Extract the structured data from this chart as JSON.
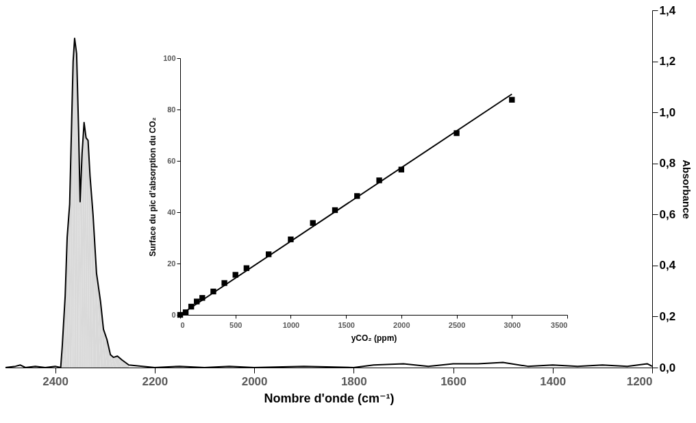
{
  "chart_data": [
    {
      "type": "line",
      "xlabel": "Nombre d'onde (cm⁻¹)",
      "y2label": "Absorbance",
      "xlim": [
        2500,
        1200
      ],
      "xticks": [
        2400,
        2200,
        2000,
        1800,
        1600,
        1400,
        1200
      ],
      "y2lim": [
        0,
        1.4
      ],
      "y2ticks": [
        {
          "value": 0,
          "label": "0,0"
        },
        {
          "value": 0.2,
          "label": "0,2"
        },
        {
          "value": 0.4,
          "label": "0,4"
        },
        {
          "value": 0.6,
          "label": "0,6"
        },
        {
          "value": 0.8,
          "label": "0,8"
        },
        {
          "value": 1,
          "label": "1,0"
        },
        {
          "value": 1.2,
          "label": "1,2"
        },
        {
          "value": 1.4,
          "label": "1,4"
        }
      ],
      "series": [
        {
          "type": "area",
          "axis": "y2",
          "color": "#d9d9d9",
          "x": [
            2389,
            2386,
            2380,
            2376,
            2371,
            2367,
            2364,
            2361,
            2357,
            2353,
            2350,
            2346,
            2342,
            2338,
            2334,
            2330,
            2324,
            2317,
            2309,
            2303,
            2296,
            2289,
            2283,
            2275,
            2266,
            2252
          ],
          "values": [
            0,
            0.08,
            0.28,
            0.51,
            0.64,
            0.96,
            1.2,
            1.29,
            1.23,
            0.93,
            0.65,
            0.84,
            0.96,
            0.9,
            0.89,
            0.75,
            0.6,
            0.37,
            0.26,
            0.15,
            0.11,
            0.05,
            0.04,
            0.045,
            0.03,
            0.01
          ]
        },
        {
          "axis": "y2",
          "color": "#000000",
          "x": [
            2500,
            2480,
            2470,
            2460,
            2440,
            2420,
            2400,
            2389,
            2386,
            2380,
            2376,
            2371,
            2367,
            2364,
            2361,
            2357,
            2353,
            2350,
            2346,
            2342,
            2338,
            2334,
            2330,
            2324,
            2317,
            2309,
            2303,
            2296,
            2289,
            2283,
            2275,
            2266,
            2252,
            2200,
            2150,
            2100,
            2050,
            2000,
            1900,
            1800,
            1760,
            1700,
            1650,
            1600,
            1550,
            1500,
            1450,
            1400,
            1350,
            1300,
            1250,
            1210,
            1200
          ],
          "values": [
            0,
            0.005,
            0.01,
            0,
            0.005,
            0,
            0.005,
            0,
            0.08,
            0.28,
            0.51,
            0.64,
            0.96,
            1.2,
            1.29,
            1.23,
            0.93,
            0.65,
            0.84,
            0.96,
            0.9,
            0.89,
            0.75,
            0.6,
            0.37,
            0.26,
            0.15,
            0.11,
            0.05,
            0.04,
            0.045,
            0.03,
            0.01,
            0,
            0.005,
            0,
            0.005,
            0,
            0.005,
            0,
            0.01,
            0.015,
            0.005,
            0.015,
            0.015,
            0.02,
            0.005,
            0.01,
            0.005,
            0.01,
            0.005,
            0.015,
            0.005
          ]
        }
      ]
    },
    {
      "type": "scatter",
      "xlabel": "yCO₂ (ppm)",
      "ylabel": "Surface du pic d’absorption du CO₂",
      "xlim": [
        0,
        3500
      ],
      "xticks": [
        0,
        500,
        1000,
        1500,
        2000,
        2500,
        3000,
        3500
      ],
      "ylim": [
        0,
        100
      ],
      "yticks": [
        0,
        20,
        40,
        60,
        80,
        100
      ],
      "series": [
        {
          "marker": "square",
          "color": "#000000",
          "x": [
            0,
            50,
            100,
            150,
            200,
            300,
            400,
            500,
            600,
            800,
            1000,
            1200,
            1400,
            1600,
            1800,
            2000,
            2500,
            3000
          ],
          "values": [
            0,
            1,
            3.2,
            5.2,
            6.6,
            9.1,
            12.4,
            15.6,
            18.2,
            23.6,
            29.4,
            35.8,
            40.8,
            46.3,
            52.4,
            56.6,
            70.8,
            83.8
          ]
        },
        {
          "type": "line",
          "color": "#000000",
          "x": [
            0,
            3000
          ],
          "values": [
            0,
            86
          ]
        }
      ]
    }
  ]
}
